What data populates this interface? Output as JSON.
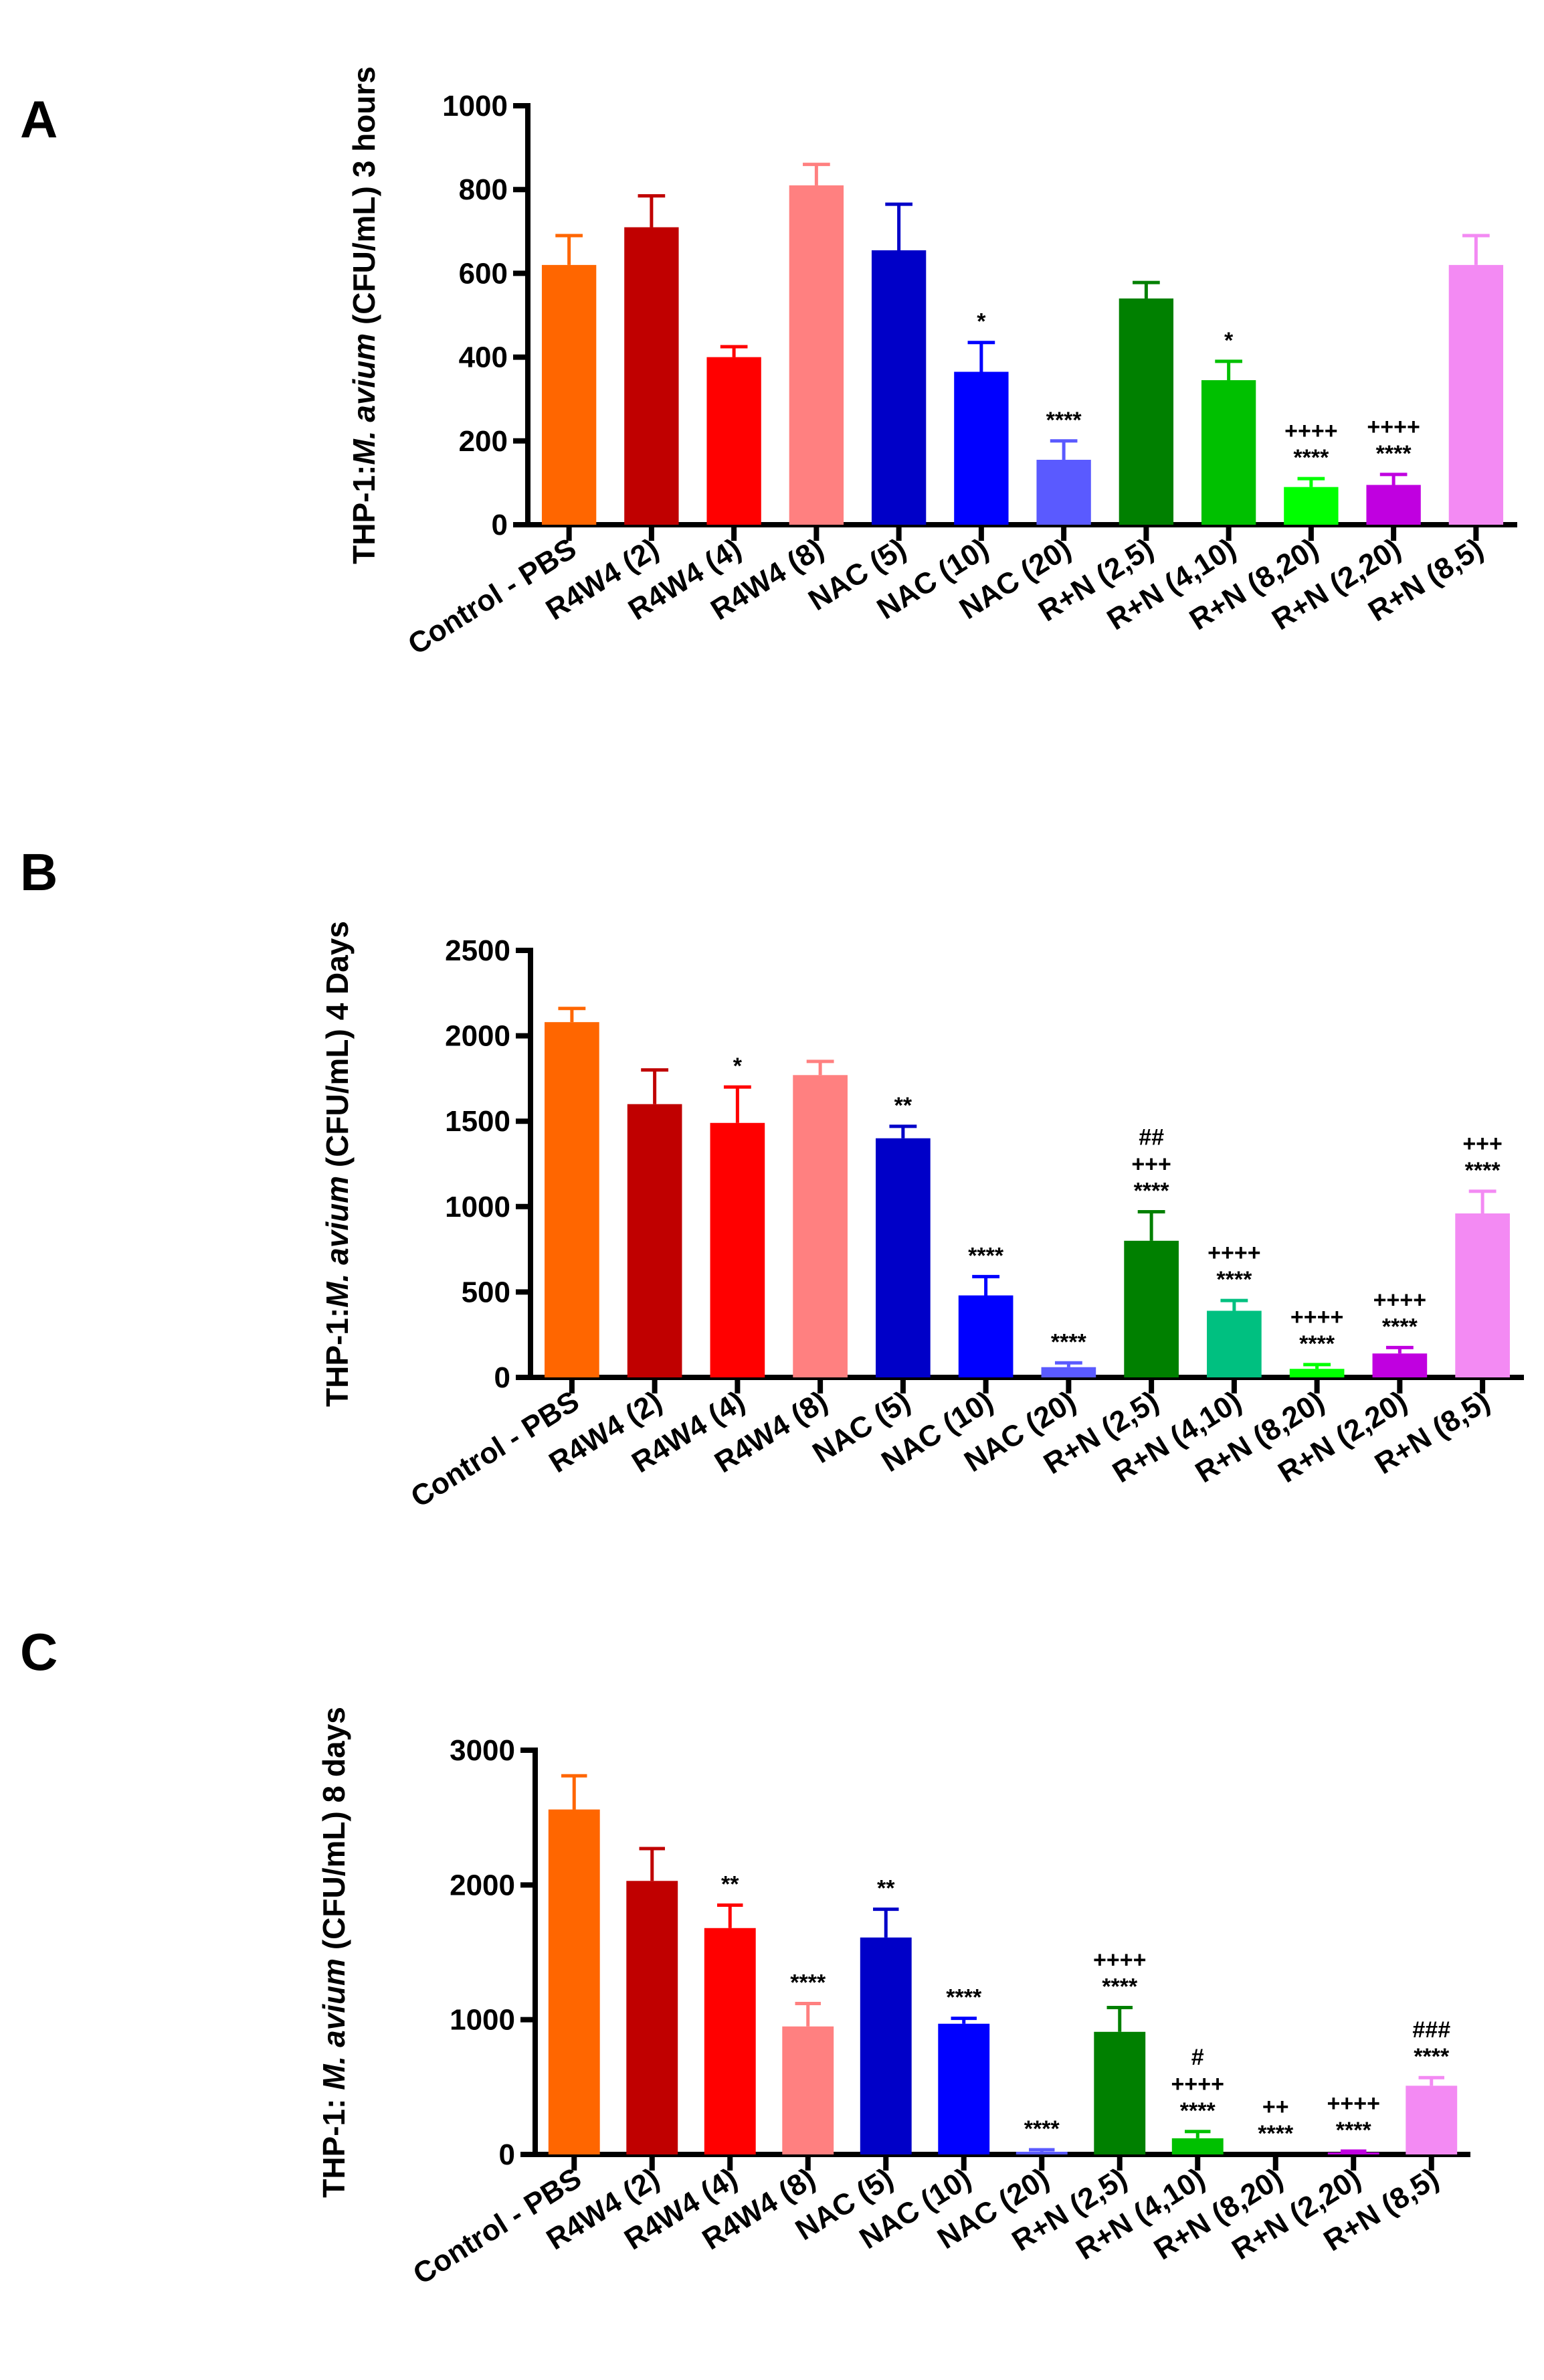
{
  "colors": {
    "Control - PBS": "#ff6600",
    "R4W4 (2)": "#c00000",
    "R4W4 (4)": "#ff0000",
    "R4W4 (8)": "#ff8080",
    "NAC (5)": "#0000c8",
    "NAC (10)": "#0000ff",
    "NAC (20)": "#5a5aff",
    "R+N (2,5)": "#008000",
    "R+N (4,10)": "#00c000",
    "R+N (8,20)": "#00ff00",
    "R+N (2,20)": "#c000e0",
    "R+N (8,5)": "#f38af3"
  },
  "chart_data": [
    {
      "panel": "A",
      "type": "bar",
      "ylabel": {
        "prefix": "THP-1:",
        "italic": "M. avium",
        "suffix": " (CFU/mL) 3 hours"
      },
      "ylim": [
        0,
        1000
      ],
      "yticks": [
        0,
        200,
        400,
        600,
        800,
        1000
      ],
      "categories": [
        "Control - PBS",
        "R4W4 (2)",
        "R4W4 (4)",
        "R4W4 (8)",
        "NAC (5)",
        "NAC (10)",
        "NAC (20)",
        "R+N (2,5)",
        "R+N (4,10)",
        "R+N (8,20)",
        "R+N (2,20)",
        "R+N (8,5)"
      ],
      "values": [
        620,
        710,
        400,
        810,
        655,
        365,
        155,
        540,
        345,
        90,
        95,
        620
      ],
      "error_upper": [
        690,
        785,
        425,
        860,
        765,
        435,
        200,
        578,
        390,
        110,
        120,
        690
      ],
      "annotations": [
        [],
        [],
        [],
        [],
        [],
        [
          "*"
        ],
        [
          "****"
        ],
        [],
        [
          "*"
        ],
        [
          "++++",
          "****"
        ],
        [
          "++++",
          "****"
        ],
        []
      ],
      "color_overrides": {}
    },
    {
      "panel": "B",
      "type": "bar",
      "ylabel": {
        "prefix": "THP-1:",
        "italic": "M. avium",
        "suffix": " (CFU/mL) 4 Days"
      },
      "ylim": [
        0,
        2500
      ],
      "yticks": [
        0,
        500,
        1000,
        1500,
        2000,
        2500
      ],
      "categories": [
        "Control - PBS",
        "R4W4 (2)",
        "R4W4 (4)",
        "R4W4 (8)",
        "NAC (5)",
        "NAC (10)",
        "NAC (20)",
        "R+N (2,5)",
        "R+N (4,10)",
        "R+N (8,20)",
        "R+N (2,20)",
        "R+N (8,5)"
      ],
      "values": [
        2080,
        1600,
        1490,
        1770,
        1400,
        480,
        60,
        800,
        390,
        50,
        140,
        960
      ],
      "error_upper": [
        2160,
        1800,
        1700,
        1850,
        1470,
        590,
        85,
        970,
        450,
        75,
        175,
        1090
      ],
      "annotations": [
        [],
        [],
        [
          "*"
        ],
        [],
        [
          "**"
        ],
        [
          "****"
        ],
        [
          "****"
        ],
        [
          "##",
          "+++",
          "****"
        ],
        [
          "++++",
          "****"
        ],
        [
          "++++",
          "****"
        ],
        [
          "++++",
          "****"
        ],
        [
          "+++",
          "****"
        ]
      ],
      "color_overrides": {
        "R+N (4,10)": "#00c080"
      }
    },
    {
      "panel": "C",
      "type": "bar",
      "ylabel": {
        "prefix": "THP-1: ",
        "italic": "M. avium",
        "suffix": " (CFU/mL) 8 days"
      },
      "ylim": [
        0,
        3000
      ],
      "yticks": [
        0,
        1000,
        2000,
        3000
      ],
      "categories": [
        "Control - PBS",
        "R4W4 (2)",
        "R4W4 (4)",
        "R4W4 (8)",
        "NAC (5)",
        "NAC (10)",
        "NAC (20)",
        "R+N (2,5)",
        "R+N (4,10)",
        "R+N (8,20)",
        "R+N (2,20)",
        "R+N (8,5)"
      ],
      "values": [
        2560,
        2030,
        1680,
        950,
        1610,
        970,
        20,
        910,
        120,
        0,
        15,
        510
      ],
      "error_upper": [
        2810,
        2270,
        1850,
        1120,
        1820,
        1010,
        35,
        1090,
        170,
        0,
        25,
        570
      ],
      "annotations": [
        [],
        [],
        [
          "**"
        ],
        [
          "****"
        ],
        [
          "**"
        ],
        [
          "****"
        ],
        [
          "****"
        ],
        [
          "++++",
          "****"
        ],
        [
          "#",
          "++++",
          "****"
        ],
        [
          "++",
          "****"
        ],
        [
          "++++",
          "****"
        ],
        [
          "###",
          "****"
        ]
      ],
      "color_overrides": {}
    }
  ]
}
